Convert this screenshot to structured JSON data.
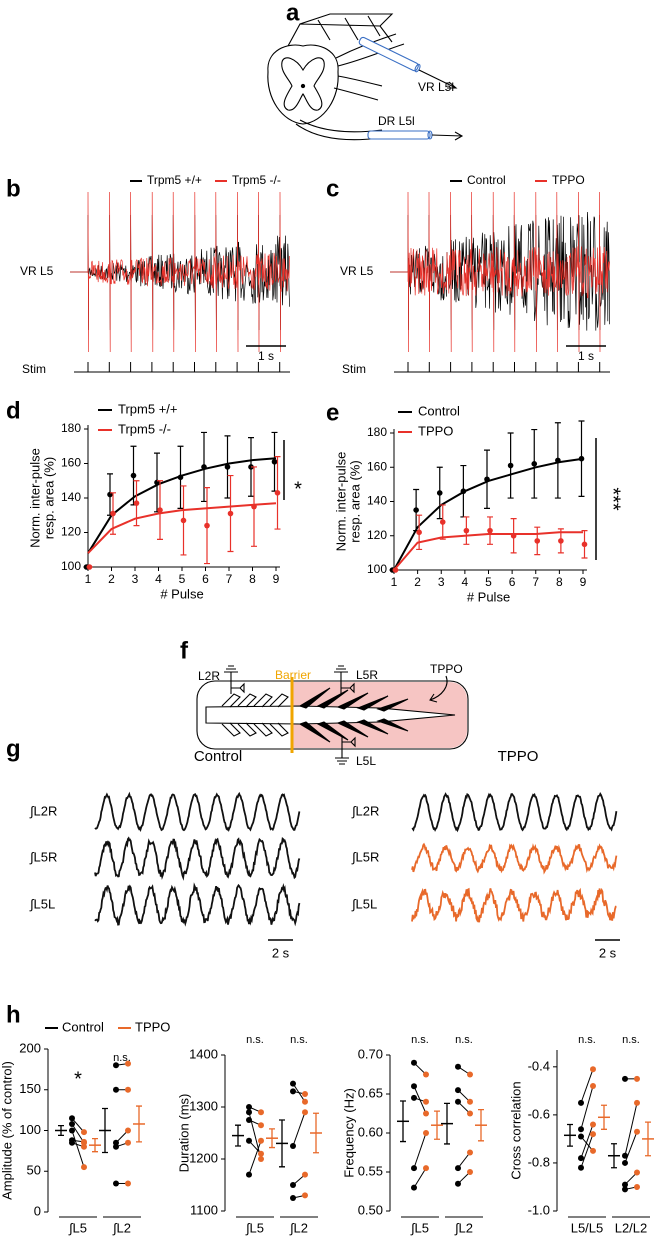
{
  "panel_labels": [
    "a",
    "b",
    "c",
    "d",
    "e",
    "f",
    "g",
    "h"
  ],
  "panel_a": {
    "vr_label": "VR L5l",
    "dr_label": "DR L5l"
  },
  "panel_b": {
    "legend": [
      "Trpm5 +/+",
      "Trpm5 -/-"
    ],
    "trace_label": "VR L5",
    "stim_label": "Stim",
    "scale_label": "1 s"
  },
  "panel_c": {
    "legend": [
      "Control",
      "TPPO"
    ],
    "trace_label": "VR L5",
    "stim_label": "Stim",
    "scale_label": "1 s"
  },
  "panel_f": {
    "l2r": "L2R",
    "barrier": "Barrier",
    "l5r": "L5R",
    "tppo": "TPPO",
    "l5l": "L5L"
  },
  "panel_g": {
    "conditions": [
      "Control",
      "TPPO"
    ],
    "trace_labels": [
      "∫L2R",
      "∫L5R",
      "∫L5L"
    ],
    "scale_label": "2 s"
  },
  "chart_data": [
    {
      "type": "line",
      "ylabel": [
        "Norm. inter-pulse",
        "resp. area (%)"
      ],
      "xlabel": "# Pulse",
      "x": [
        1,
        2,
        3,
        4,
        5,
        6,
        7,
        8,
        9
      ],
      "xlim": [
        1,
        9
      ],
      "xticks": [
        1,
        2,
        3,
        4,
        5,
        6,
        7,
        8,
        9
      ],
      "ylim": [
        100,
        180
      ],
      "yticks": [
        100,
        120,
        140,
        160,
        180
      ],
      "significance": "*",
      "series": [
        {
          "name": "Trpm5 +/+",
          "color": "#000000",
          "values": [
            100,
            142,
            153,
            149,
            152,
            158,
            158,
            158,
            161
          ],
          "errors": [
            0,
            12,
            17,
            17,
            18,
            20,
            18,
            17,
            17
          ],
          "fit": [
            108,
            130,
            141,
            148,
            153,
            157,
            160,
            162,
            163
          ]
        },
        {
          "name": "Trpm5 -/-",
          "color": "#e8312a",
          "values": [
            100,
            131,
            137,
            133,
            127,
            124,
            131,
            135,
            143
          ],
          "errors": [
            0,
            12,
            13,
            17,
            20,
            22,
            22,
            23,
            21
          ],
          "fit": [
            108,
            122,
            128,
            131,
            133,
            134,
            135,
            136,
            137
          ]
        }
      ]
    },
    {
      "type": "line",
      "ylabel": [
        "Norm. inter-pulse",
        "resp. area (%)"
      ],
      "xlabel": "# Pulse",
      "x": [
        1,
        2,
        3,
        4,
        5,
        6,
        7,
        8,
        9
      ],
      "xlim": [
        1,
        9
      ],
      "xticks": [
        1,
        2,
        3,
        4,
        5,
        6,
        7,
        8,
        9
      ],
      "ylim": [
        100,
        180
      ],
      "yticks": [
        100,
        120,
        140,
        160,
        180
      ],
      "significance": "***",
      "series": [
        {
          "name": "Control",
          "color": "#000000",
          "values": [
            100,
            135,
            145,
            146,
            153,
            161,
            162,
            164,
            165
          ],
          "errors": [
            0,
            12,
            15,
            15,
            17,
            19,
            20,
            22,
            22
          ],
          "fit": [
            100,
            125,
            138,
            146,
            152,
            156,
            160,
            163,
            165
          ]
        },
        {
          "name": "TPPO",
          "color": "#e8312a",
          "values": [
            100,
            122,
            128,
            123,
            123,
            120,
            117,
            117,
            115
          ],
          "errors": [
            0,
            10,
            10,
            8,
            8,
            10,
            8,
            7,
            8
          ],
          "fit": [
            100,
            116,
            119,
            120,
            121,
            121,
            121,
            122,
            122
          ]
        }
      ]
    },
    {
      "type": "paired",
      "ylabel": "Amplitude (% of control)",
      "ylim": [
        0,
        200
      ],
      "yticks": [
        0,
        50,
        100,
        150,
        200
      ],
      "categories": [
        "∫L5",
        "∫L2"
      ],
      "significance": [
        "*",
        "n.s."
      ],
      "series": [
        {
          "name": "Control",
          "color": "#000000",
          "values": [
            [
              115,
              108,
              100,
              88,
              85
            ],
            [
              180,
              150,
              85,
              80,
              35
            ]
          ],
          "mean": [
            100,
            100
          ],
          "sem": [
            6,
            27
          ]
        },
        {
          "name": "TPPO",
          "color": "#e8692a",
          "values": [
            [
              98,
              85,
              55,
              86,
              80
            ],
            [
              182,
              150,
              100,
              85,
              35
            ]
          ],
          "mean": [
            82,
            108
          ],
          "sem": [
            8,
            22
          ]
        }
      ]
    },
    {
      "type": "paired",
      "ylabel": "Duration (ms)",
      "ylim": [
        1100,
        1400
      ],
      "yticks": [
        1100,
        1200,
        1300,
        1400
      ],
      "categories": [
        "∫L5",
        "∫L2"
      ],
      "significance": [
        "n.s.",
        "n.s."
      ],
      "series": [
        {
          "color": "#000000",
          "values": [
            [
              1300,
              1290,
              1275,
              1235,
              1170
            ],
            [
              1345,
              1330,
              1225,
              1150,
              1125
            ]
          ],
          "mean": [
            1245,
            1230
          ],
          "sem": [
            20,
            45
          ]
        },
        {
          "color": "#e8692a",
          "values": [
            [
              1290,
              1200,
              1265,
              1210,
              1235
            ],
            [
              1310,
              1325,
              1290,
              1170,
              1130
            ]
          ],
          "mean": [
            1240,
            1250
          ],
          "sem": [
            18,
            38
          ]
        }
      ]
    },
    {
      "type": "paired",
      "ylabel": "Frequency (Hz)",
      "ylim": [
        0.5,
        0.7
      ],
      "yticks": [
        {
          "value": 0.5,
          "label": "0.50"
        },
        0.55,
        {
          "value": 0.6,
          "label": "0.60"
        },
        0.65,
        {
          "value": 0.7,
          "label": "0.70"
        }
      ],
      "categories": [
        "∫L5",
        "∫L2"
      ],
      "significance": [
        "n.s.",
        "n.s."
      ],
      "series": [
        {
          "color": "#000000",
          "values": [
            [
              0.69,
              0.66,
              0.645,
              0.555,
              0.53
            ],
            [
              0.685,
              0.655,
              0.64,
              0.555,
              0.535
            ]
          ],
          "mean": [
            0.615,
            0.612
          ],
          "sem": [
            0.026,
            0.026
          ]
        },
        {
          "color": "#e8692a",
          "values": [
            [
              0.675,
              0.625,
              0.64,
              0.6,
              0.555
            ],
            [
              0.675,
              0.64,
              0.625,
              0.575,
              0.55
            ]
          ],
          "mean": [
            0.61,
            0.61
          ],
          "sem": [
            0.018,
            0.02
          ]
        }
      ]
    },
    {
      "type": "paired",
      "ylabel": "Cross correlation",
      "ylim": [
        -1.0,
        -0.33
      ],
      "yticks": [
        {
          "value": -1,
          "label": "-1.0"
        },
        -0.8,
        -0.6,
        -0.4
      ],
      "categories": [
        "L5/L5",
        "L2/L2"
      ],
      "significance": [
        "n.s.",
        "n.s."
      ],
      "series": [
        {
          "color": "#000000",
          "values": [
            [
              -0.55,
              -0.66,
              -0.69,
              -0.78,
              -0.82
            ],
            [
              -0.45,
              -0.77,
              -0.8,
              -0.89,
              -0.91
            ]
          ],
          "mean": [
            -0.685,
            -0.77
          ],
          "sem": [
            0.045,
            0.05
          ]
        },
        {
          "color": "#e8692a",
          "values": [
            [
              -0.41,
              -0.48,
              -0.75,
              -0.64,
              -0.68
            ],
            [
              -0.45,
              -0.55,
              -0.67,
              -0.84,
              -0.9
            ]
          ],
          "mean": [
            -0.61,
            -0.7
          ],
          "sem": [
            0.05,
            0.07
          ]
        }
      ]
    }
  ]
}
